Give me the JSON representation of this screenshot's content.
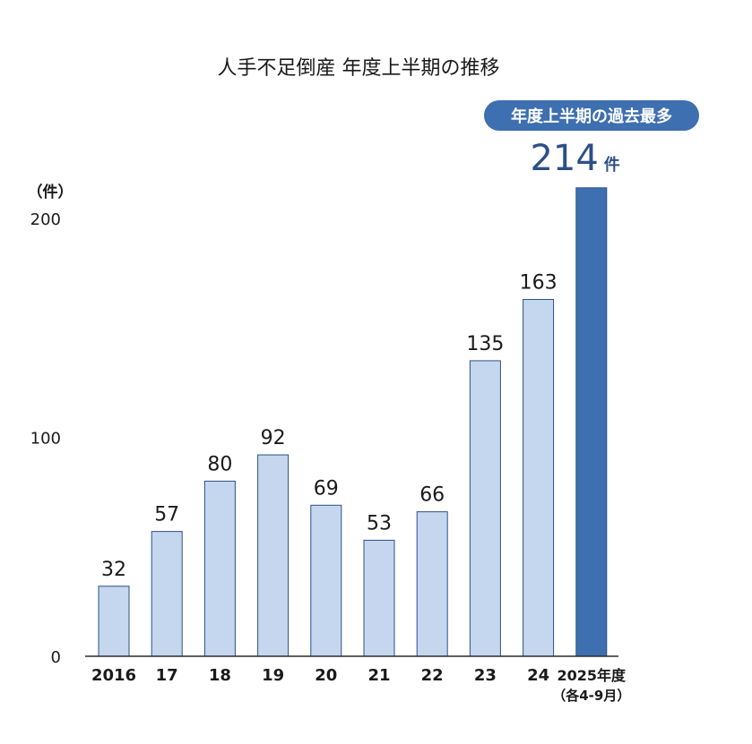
{
  "chart_data": {
    "type": "bar",
    "title": "人手不足倒産 年度上半期の推移",
    "ylabel": "（件）",
    "categories": [
      "2016",
      "17",
      "18",
      "19",
      "20",
      "21",
      "22",
      "23",
      "24",
      "2025年度"
    ],
    "category_sublabels": [
      "",
      "",
      "",
      "",
      "",
      "",
      "",
      "",
      "",
      "（各4-9月）"
    ],
    "values": [
      32,
      57,
      80,
      92,
      69,
      53,
      66,
      135,
      163,
      214
    ],
    "ylim": [
      0,
      214
    ],
    "yticks": [
      0,
      100,
      200
    ],
    "grid": false,
    "highlight": {
      "index": 9,
      "badge": "年度上半期の過去最多",
      "value_text": "214",
      "unit": "件"
    },
    "colors": {
      "bar": "#c5d7ee",
      "bar_highlight": "#3e6fb0",
      "bar_border": "#2d4f86",
      "badge_bg": "#3e6fb0",
      "badge_text": "#ffffff",
      "highlight_value": "#2d4f86"
    }
  }
}
